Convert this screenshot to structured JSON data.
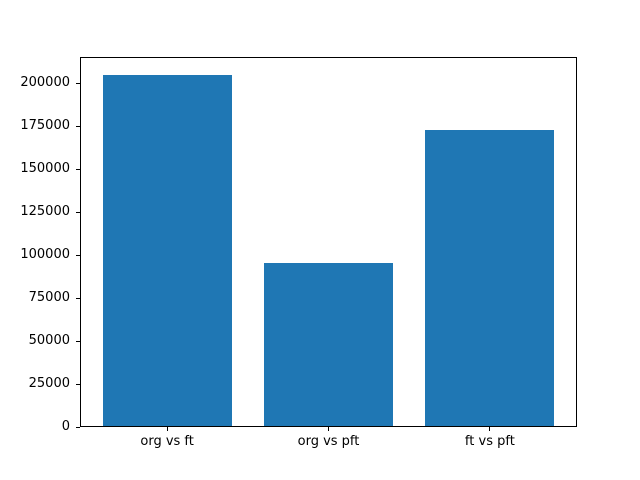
{
  "figure": {
    "background": "#ffffff",
    "bar_color": "#1f77b4",
    "spine_color": "#000000",
    "text_color": "#000000"
  },
  "chart_data": {
    "type": "bar",
    "title": "",
    "xlabel": "",
    "ylabel": "",
    "categories": [
      "org vs ft",
      "org vs pft",
      "ft vs pft"
    ],
    "values": [
      205000,
      95500,
      173000
    ],
    "yticks": [
      0,
      25000,
      50000,
      75000,
      100000,
      125000,
      150000,
      175000,
      200000
    ],
    "ytick_labels": [
      "0",
      "25000",
      "50000",
      "75000",
      "100000",
      "125000",
      "150000",
      "175000",
      "200000"
    ],
    "ylim": [
      0,
      215250
    ],
    "xlim": [
      -0.54,
      2.54
    ],
    "bar_width_fraction": 0.8,
    "grid": false,
    "legend": null
  }
}
